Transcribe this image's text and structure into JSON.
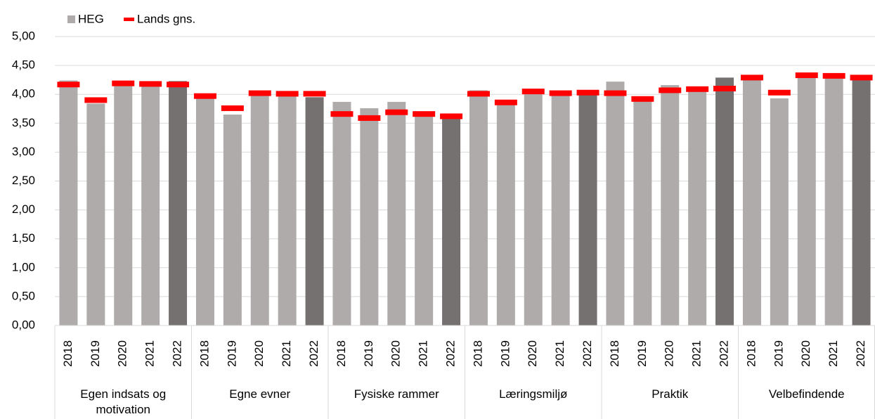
{
  "chart_data": {
    "type": "bar",
    "groups": [
      {
        "name": "Egen indsats og motivation",
        "categories": [
          "2018",
          "2019",
          "2020",
          "2021",
          "2022"
        ]
      },
      {
        "name": "Egne evner",
        "categories": [
          "2018",
          "2019",
          "2020",
          "2021",
          "2022"
        ]
      },
      {
        "name": "Fysiske rammer",
        "categories": [
          "2018",
          "2019",
          "2020",
          "2021",
          "2022"
        ]
      },
      {
        "name": "Læringsmiljø",
        "categories": [
          "2018",
          "2019",
          "2020",
          "2021",
          "2022"
        ]
      },
      {
        "name": "Praktik",
        "categories": [
          "2018",
          "2019",
          "2020",
          "2021",
          "2022"
        ]
      },
      {
        "name": "Velbefindende",
        "categories": [
          "2018",
          "2019",
          "2020",
          "2021",
          "2022"
        ]
      }
    ],
    "series": [
      {
        "name": "HEG",
        "color": "#afabab",
        "highlight_color": "#767171",
        "values": [
          4.24,
          3.84,
          4.2,
          4.16,
          4.23,
          3.95,
          3.65,
          4.02,
          4.0,
          3.95,
          3.87,
          3.76,
          3.87,
          3.7,
          3.58,
          4.07,
          3.85,
          4.05,
          4.0,
          4.02,
          4.22,
          3.89,
          4.16,
          4.06,
          4.29,
          4.28,
          3.93,
          4.3,
          4.28,
          4.27
        ]
      },
      {
        "name": "Lands gns.",
        "color": "#ff0000",
        "values": [
          4.17,
          3.9,
          4.19,
          4.18,
          4.17,
          3.97,
          3.76,
          4.02,
          4.01,
          4.01,
          3.66,
          3.59,
          3.69,
          3.66,
          3.62,
          4.01,
          3.86,
          4.05,
          4.02,
          4.03,
          4.02,
          3.92,
          4.07,
          4.09,
          4.1,
          4.29,
          4.03,
          4.33,
          4.32,
          4.29
        ]
      }
    ],
    "ylim": [
      0,
      5
    ],
    "yticks": [
      {
        "value": 0,
        "label": "0,00"
      },
      {
        "value": 0.5,
        "label": "0,50"
      },
      {
        "value": 1,
        "label": "1,00"
      },
      {
        "value": 1.5,
        "label": "1,50"
      },
      {
        "value": 2,
        "label": "2,00"
      },
      {
        "value": 2.5,
        "label": "2,50"
      },
      {
        "value": 3,
        "label": "3,00"
      },
      {
        "value": 3.5,
        "label": "3,50"
      },
      {
        "value": 4,
        "label": "4,00"
      },
      {
        "value": 4.5,
        "label": "4,50"
      },
      {
        "value": 5,
        "label": "5,00"
      }
    ],
    "grid": true,
    "legend": "top-left"
  }
}
